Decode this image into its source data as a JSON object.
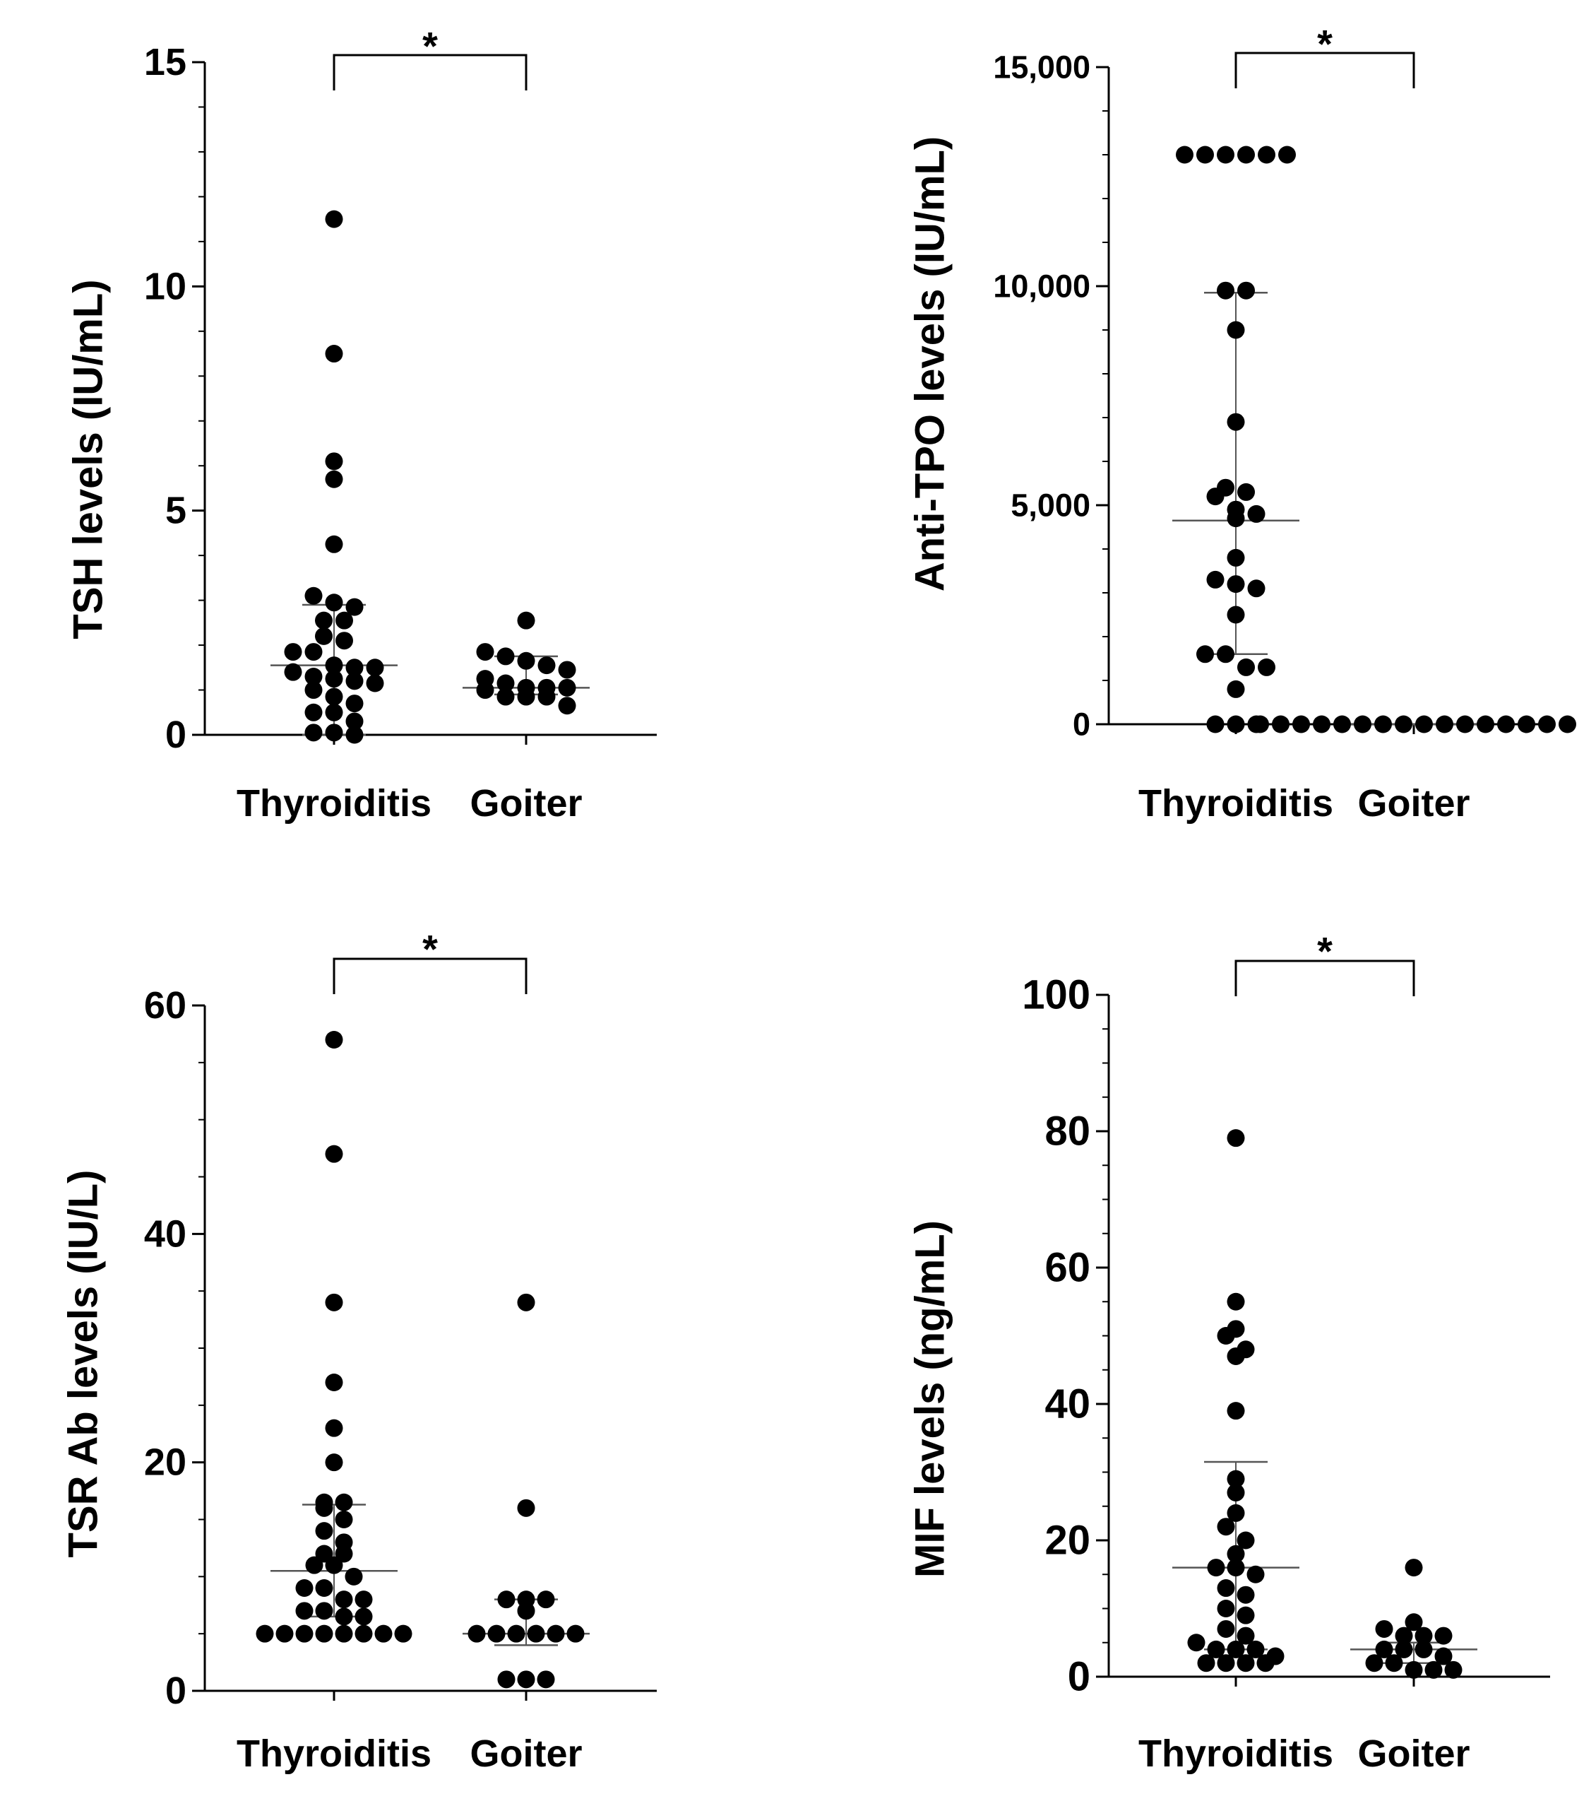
{
  "chart_data": [
    {
      "type": "scatter",
      "ylabel": "TSH levels (IU/mL)",
      "categories": [
        "Thyroiditis",
        "Goiter"
      ],
      "ylim": [
        0,
        15
      ],
      "yticks": [
        0,
        5,
        10,
        15
      ],
      "yticks_labels": [
        "0",
        "5",
        "10",
        "15"
      ],
      "minor_ticks_per_major": 5,
      "significance": "*",
      "groups": [
        {
          "name": "Thyroiditis",
          "median": 1.55,
          "q1": 0.0,
          "q3": 2.9,
          "points": [
            11.5,
            8.5,
            6.1,
            5.7,
            4.25,
            3.1,
            2.95,
            2.85,
            2.55,
            2.55,
            2.2,
            2.1,
            1.85,
            1.85,
            1.55,
            1.5,
            1.5,
            1.4,
            1.3,
            1.25,
            1.2,
            1.15,
            1.0,
            0.85,
            0.7,
            0.5,
            0.5,
            0.3,
            0.05,
            0.0,
            0.05
          ]
        },
        {
          "name": "Goiter",
          "median": 1.05,
          "q1": 0.9,
          "q3": 1.75,
          "points": [
            2.55,
            1.85,
            1.75,
            1.65,
            1.55,
            1.45,
            1.25,
            1.15,
            1.05,
            1.05,
            1.05,
            1.0,
            0.85,
            0.85,
            0.85,
            0.65
          ]
        }
      ]
    },
    {
      "type": "scatter",
      "ylabel": "Anti-TPO levels (IU/mL)",
      "categories": [
        "Thyroiditis",
        "Goiter"
      ],
      "ylim": [
        0,
        15000
      ],
      "yticks": [
        0,
        5000,
        10000,
        15000
      ],
      "yticks_labels": [
        "0",
        "5,000",
        "10,000",
        "15,000"
      ],
      "minor_ticks_per_major": 5,
      "significance": "*",
      "groups": [
        {
          "name": "Thyroiditis",
          "median": 4650,
          "q1": 1600,
          "q3": 9850,
          "points": [
            13000,
            13000,
            13000,
            13000,
            13000,
            13000,
            9900,
            9900,
            9000,
            6900,
            5400,
            5300,
            5200,
            4900,
            4800,
            4700,
            3800,
            3300,
            3200,
            3100,
            2500,
            1600,
            1600,
            1300,
            1300,
            800,
            0,
            0,
            0
          ]
        },
        {
          "name": "Goiter",
          "median": 0,
          "q1": 0,
          "q3": 0,
          "points": [
            0,
            0,
            0,
            0,
            0,
            0,
            0,
            0,
            0,
            0,
            0,
            0,
            0,
            0,
            0,
            0
          ]
        }
      ]
    },
    {
      "type": "scatter",
      "ylabel": "TSR Ab levels (IU/L)",
      "categories": [
        "Thyroiditis",
        "Goiter"
      ],
      "ylim": [
        0,
        60
      ],
      "yticks": [
        0,
        20,
        40,
        60
      ],
      "yticks_labels": [
        "0",
        "20",
        "40",
        "60"
      ],
      "minor_ticks_per_major": 4,
      "significance": "*",
      "groups": [
        {
          "name": "Thyroiditis",
          "median": 10.5,
          "q1": 6.5,
          "q3": 16.3,
          "points": [
            57,
            47,
            34,
            27,
            23,
            20,
            16.5,
            16.5,
            16,
            15,
            14,
            13,
            12,
            12,
            11,
            11,
            10,
            9,
            9,
            8,
            8,
            7,
            7,
            6.5,
            6.5,
            5,
            5,
            5,
            5,
            5,
            5,
            5,
            5
          ]
        },
        {
          "name": "Goiter",
          "median": 5,
          "q1": 4,
          "q3": 8,
          "points": [
            34,
            16,
            8,
            8,
            8,
            7,
            5,
            5,
            5,
            5,
            5,
            5,
            1,
            1,
            1
          ]
        }
      ]
    },
    {
      "type": "scatter",
      "ylabel": "MIF levels (ng/mL)",
      "categories": [
        "Thyroiditis",
        "Goiter"
      ],
      "ylim": [
        0,
        100
      ],
      "yticks": [
        0,
        20,
        40,
        60,
        80,
        100
      ],
      "yticks_labels": [
        "0",
        "20",
        "40",
        "60",
        "80",
        "100"
      ],
      "minor_ticks_per_major": 4,
      "significance": "*",
      "groups": [
        {
          "name": "Thyroiditis",
          "median": 16,
          "q1": 4,
          "q3": 31.5,
          "points": [
            79,
            55,
            51,
            50,
            48,
            47,
            39,
            29,
            27,
            24,
            22,
            20,
            18,
            16,
            16,
            15,
            13,
            12,
            10,
            9,
            7,
            6,
            5,
            4,
            4,
            4,
            3,
            2,
            2,
            2,
            2
          ]
        },
        {
          "name": "Goiter",
          "median": 4,
          "q1": 2,
          "q3": 5,
          "points": [
            16,
            8,
            7,
            6,
            6,
            6,
            4,
            4,
            4,
            3,
            2,
            2,
            1,
            1,
            1
          ]
        }
      ]
    }
  ]
}
